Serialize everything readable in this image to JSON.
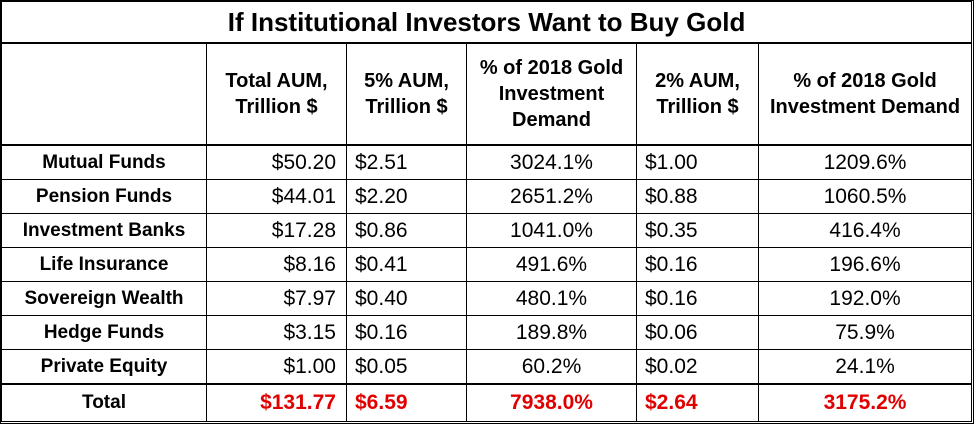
{
  "chart_data": {
    "type": "table",
    "title": "If Institutional Investors Want to Buy Gold",
    "columns": [
      "",
      "Total AUM, Trillion $",
      "5% AUM, Trillion $",
      "% of 2018 Gold Investment Demand",
      "2% AUM, Trillion $",
      "% of 2018 Gold Investment Demand"
    ],
    "rows": [
      {
        "label": "Mutual Funds",
        "total_aum": "$50.20",
        "aum5": "$2.51",
        "pct5": "3024.1%",
        "aum2": "$1.00",
        "pct2": "1209.6%"
      },
      {
        "label": "Pension Funds",
        "total_aum": "$44.01",
        "aum5": "$2.20",
        "pct5": "2651.2%",
        "aum2": "$0.88",
        "pct2": "1060.5%"
      },
      {
        "label": "Investment Banks",
        "total_aum": "$17.28",
        "aum5": "$0.86",
        "pct5": "1041.0%",
        "aum2": "$0.35",
        "pct2": "416.4%"
      },
      {
        "label": "Life Insurance",
        "total_aum": "$8.16",
        "aum5": "$0.41",
        "pct5": "491.6%",
        "aum2": "$0.16",
        "pct2": "196.6%"
      },
      {
        "label": "Sovereign Wealth",
        "total_aum": "$7.97",
        "aum5": "$0.40",
        "pct5": "480.1%",
        "aum2": "$0.16",
        "pct2": "192.0%"
      },
      {
        "label": "Hedge Funds",
        "total_aum": "$3.15",
        "aum5": "$0.16",
        "pct5": "189.8%",
        "aum2": "$0.06",
        "pct2": "75.9%"
      },
      {
        "label": "Private Equity",
        "total_aum": "$1.00",
        "aum5": "$0.05",
        "pct5": "60.2%",
        "aum2": "$0.02",
        "pct2": "24.1%"
      }
    ],
    "total": {
      "label": "Total",
      "total_aum": "$131.77",
      "aum5": "$6.59",
      "pct5": "7938.0%",
      "aum2": "$2.64",
      "pct2": "3175.2%"
    },
    "total_color": "#e00000"
  }
}
